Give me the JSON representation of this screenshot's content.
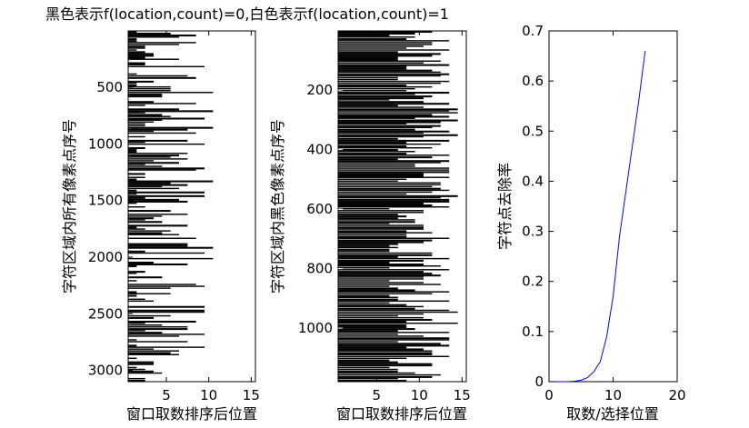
{
  "figure_title": "黑色表示f(location,count)=0,白色表示f(location,count)=1",
  "colors": {
    "background": "#ffffff",
    "ink": "#000000",
    "line": "#0000ff"
  },
  "chart_data": [
    {
      "type": "heatmap",
      "title": "黑色表示f(location,count)=0,白色表示f(location,count)=1",
      "xlabel": "窗口取数排序后位置",
      "ylabel": "字符区域内所有像素点序号",
      "x_range": [
        0.5,
        15.5
      ],
      "y_range": [
        1,
        3100
      ],
      "x_ticks": [
        5,
        10,
        15
      ],
      "y_ticks": [
        500,
        1000,
        1500,
        2000,
        2500,
        3000
      ],
      "columns": 15,
      "rows": 3100,
      "fill_profile": {
        "description": "white (1) dominant, black run lengths per row",
        "mean_black_columns": 3.5,
        "max_black_columns": 15
      },
      "colormap": {
        "0": "#000000",
        "1": "#ffffff"
      },
      "grid": false
    },
    {
      "type": "heatmap",
      "title": "",
      "xlabel": "窗口取数排序后位置",
      "ylabel": "字符区域内黑色像素点序号",
      "x_range": [
        0.5,
        15.5
      ],
      "y_range": [
        1,
        1180
      ],
      "x_ticks": [
        5,
        10,
        15
      ],
      "y_ticks": [
        200,
        400,
        600,
        800,
        1000
      ],
      "columns": 15,
      "rows": 1180,
      "fill_profile": {
        "description": "black (0) dominant, black run lengths per row",
        "mean_black_columns": 9.5,
        "min_black_columns": 4
      },
      "colormap": {
        "0": "#000000",
        "1": "#ffffff"
      },
      "grid": false
    },
    {
      "type": "line",
      "title": "",
      "xlabel": "取数/选择位置",
      "ylabel": "字符点去除率",
      "xlim": [
        0,
        20
      ],
      "ylim": [
        0,
        0.7
      ],
      "x_ticks": [
        0,
        10,
        20
      ],
      "y_ticks": [
        0,
        0.1,
        0.2,
        0.3,
        0.4,
        0.5,
        0.6,
        0.7
      ],
      "grid": false,
      "series": [
        {
          "color": "#0000ff",
          "x": [
            1,
            2,
            3,
            4,
            5,
            6,
            7,
            8,
            9,
            10,
            11,
            12,
            13,
            14,
            15
          ],
          "y": [
            0,
            0,
            0,
            0.001,
            0.003,
            0.008,
            0.02,
            0.04,
            0.09,
            0.17,
            0.29,
            0.38,
            0.47,
            0.56,
            0.66
          ]
        }
      ]
    }
  ]
}
